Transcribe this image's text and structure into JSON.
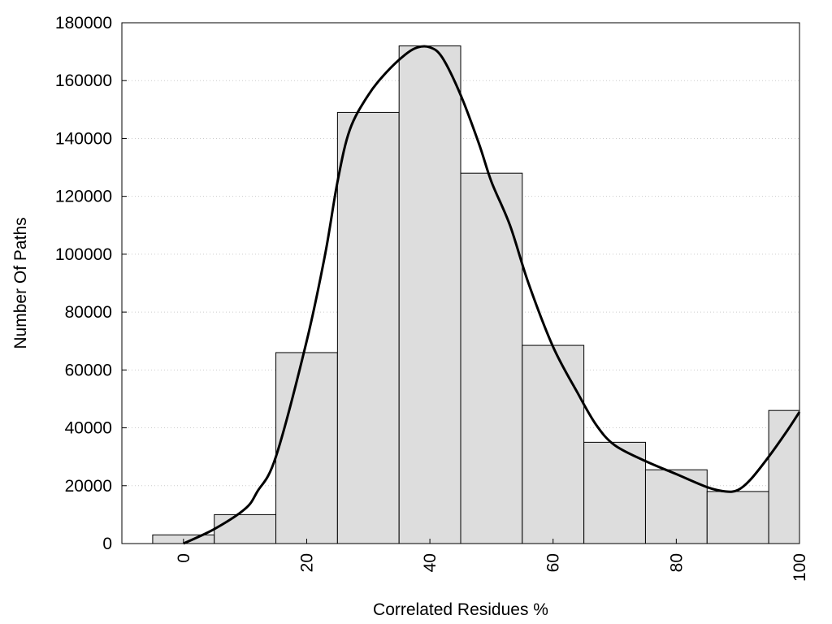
{
  "chart_data": {
    "type": "bar",
    "subtype": "histogram-with-density-curve",
    "xlabel": "Correlated Residues %",
    "ylabel": "Number Of Paths",
    "xlim": [
      -10,
      100
    ],
    "ylim": [
      0,
      180000
    ],
    "x_ticks": [
      "0",
      "20",
      "40",
      "60",
      "80",
      "100"
    ],
    "y_ticks": [
      "0",
      "20000",
      "40000",
      "60000",
      "80000",
      "100000",
      "120000",
      "140000",
      "160000",
      "180000"
    ],
    "grid": "horizontal dotted",
    "legend": "none",
    "bin_width": 10,
    "bins": [
      {
        "x": 0,
        "value": 3000
      },
      {
        "x": 10,
        "value": 10000
      },
      {
        "x": 20,
        "value": 66000
      },
      {
        "x": 30,
        "value": 149000
      },
      {
        "x": 40,
        "value": 172000
      },
      {
        "x": 50,
        "value": 128000
      },
      {
        "x": 60,
        "value": 68500
      },
      {
        "x": 70,
        "value": 35000
      },
      {
        "x": 80,
        "value": 25500
      },
      {
        "x": 90,
        "value": 18000
      },
      {
        "x": 100,
        "value": 46000
      }
    ],
    "curve": {
      "x": [
        0,
        5,
        10,
        12,
        15,
        20,
        23,
        25,
        27,
        30,
        33,
        36,
        38,
        40,
        42,
        45,
        48,
        50,
        53,
        56,
        60,
        64,
        67,
        70,
        75,
        80,
        85,
        88,
        90,
        92,
        95,
        98,
        100
      ],
      "y": [
        0,
        5000,
        12000,
        18000,
        30000,
        70000,
        100000,
        125000,
        143000,
        155000,
        163000,
        169000,
        171500,
        171500,
        168000,
        155000,
        138000,
        125000,
        110000,
        90000,
        68000,
        52000,
        41000,
        34000,
        28500,
        24000,
        19500,
        18000,
        18500,
        22000,
        30000,
        39000,
        45500
      ]
    },
    "colors": {
      "bar_fill": "#dddddd",
      "bar_stroke": "#000000",
      "curve": "#000000",
      "grid": "#cccccc"
    }
  }
}
